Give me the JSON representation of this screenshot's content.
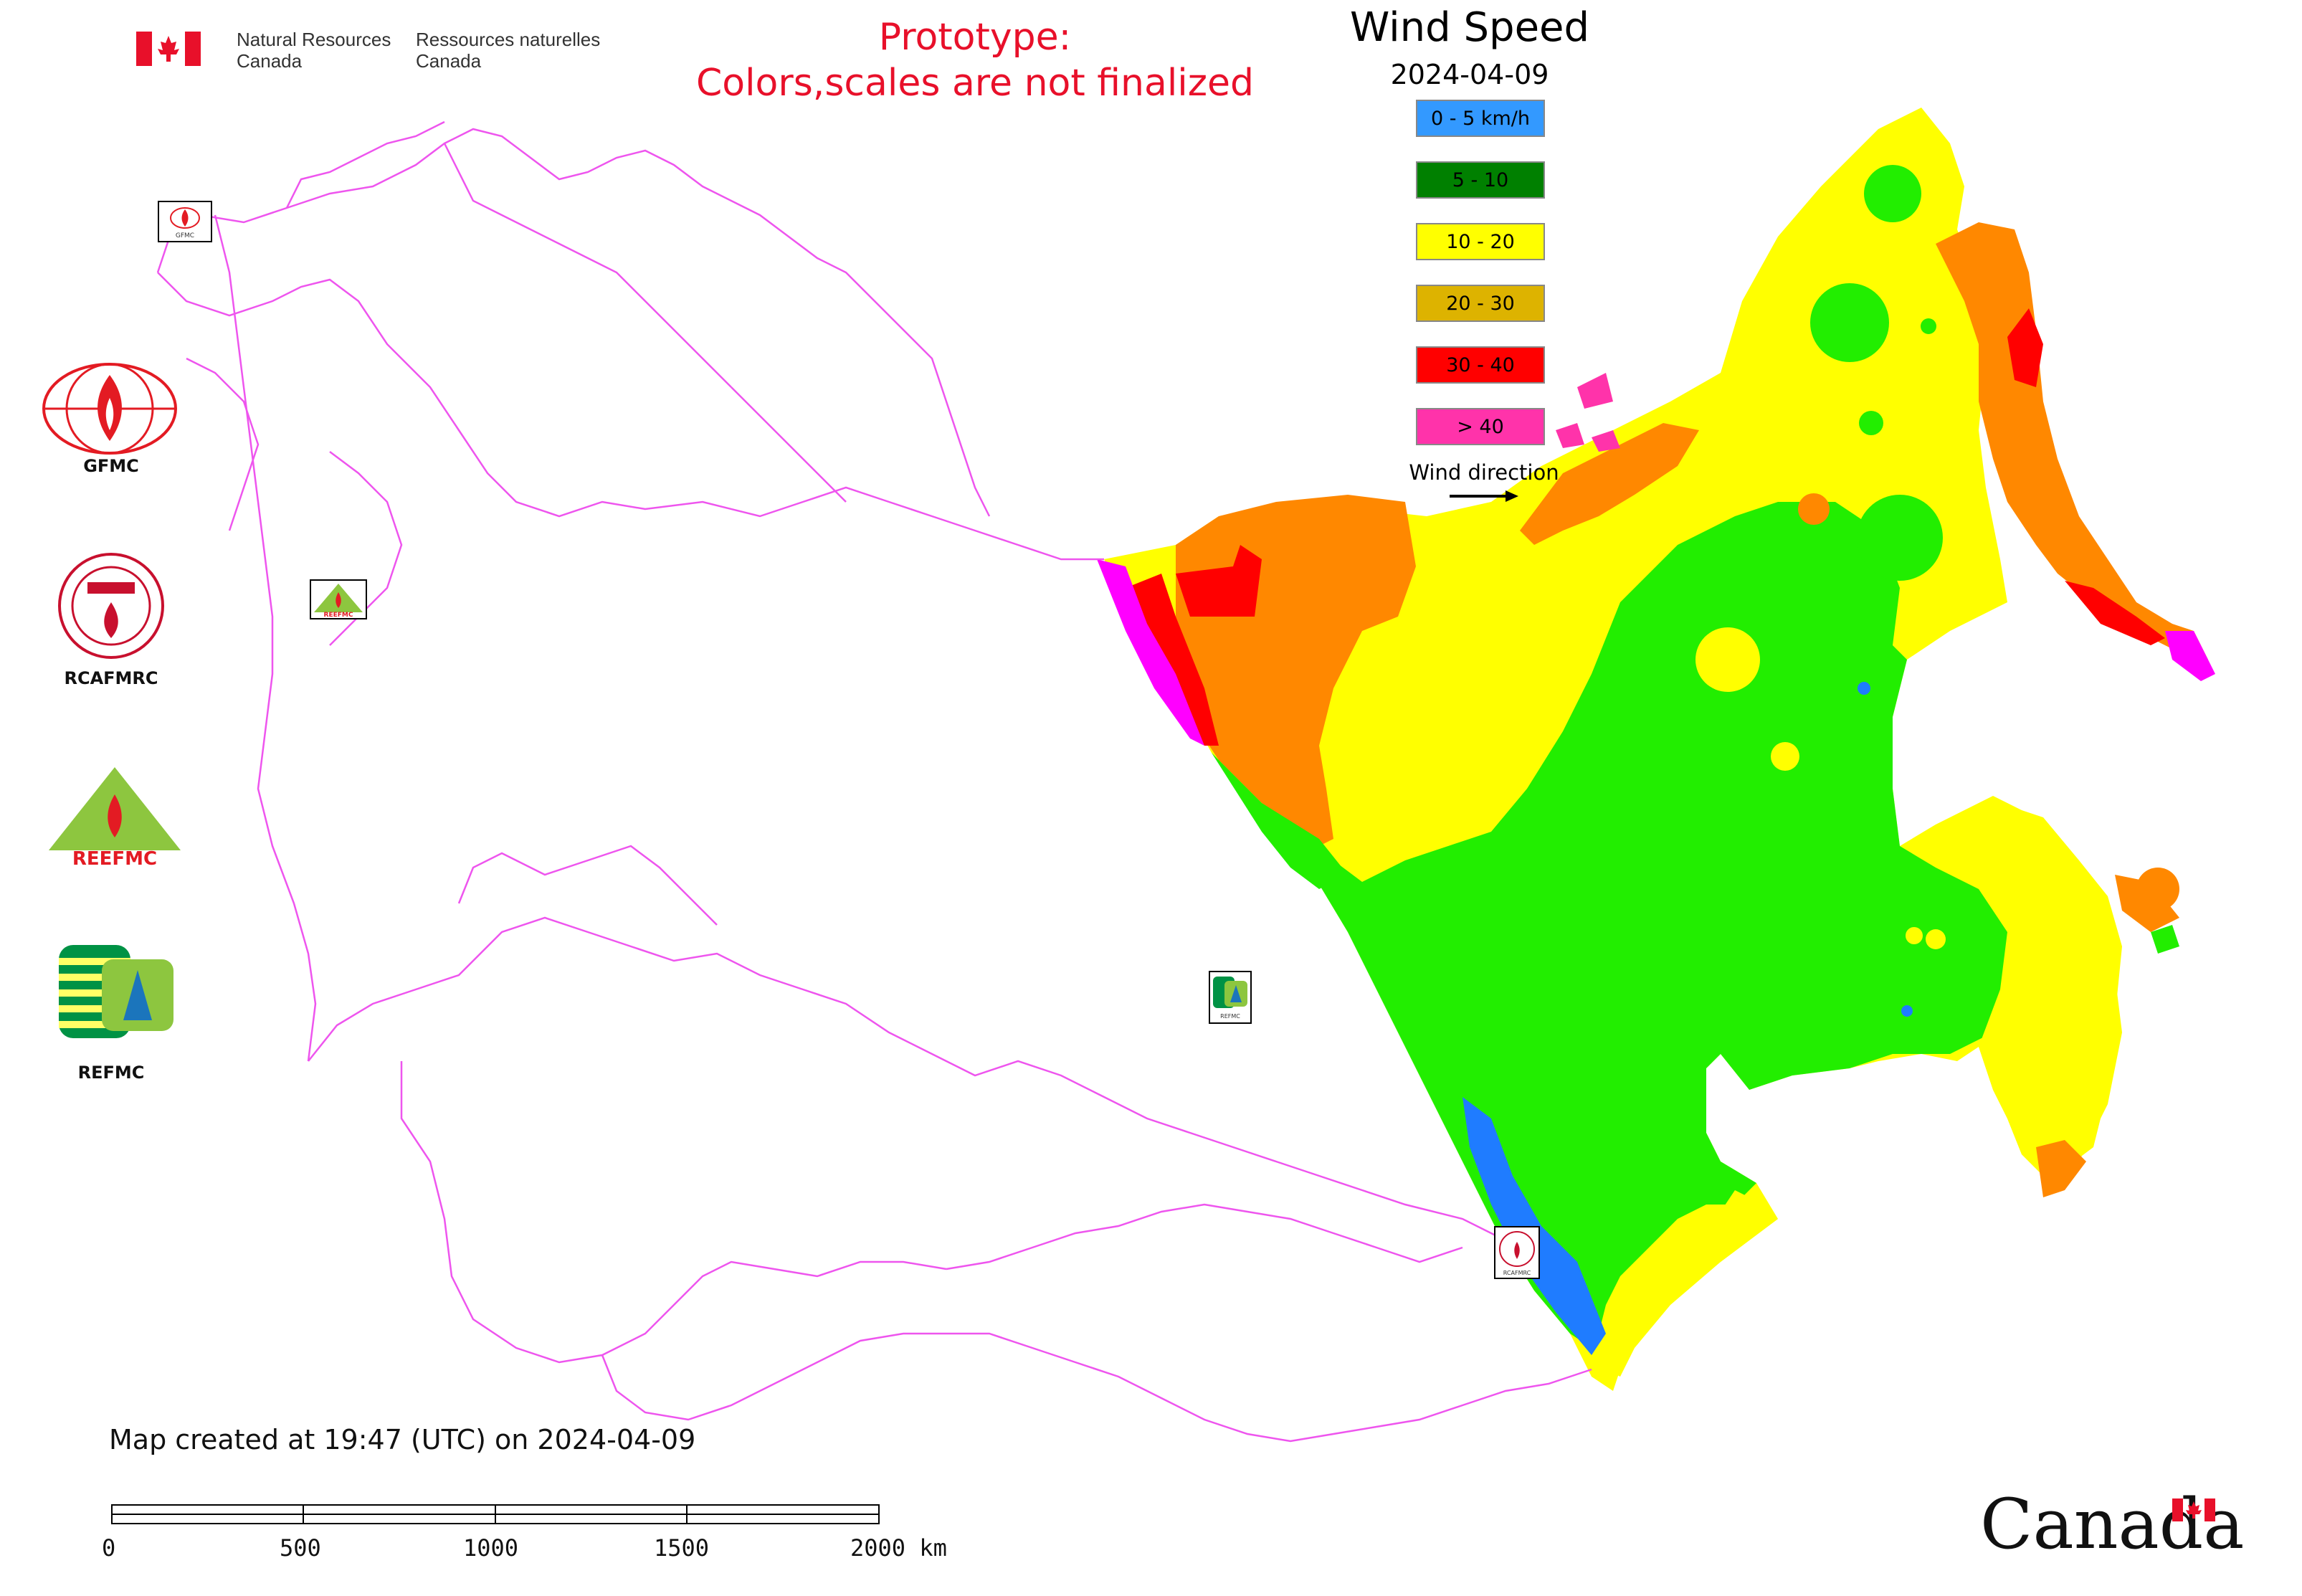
{
  "header": {
    "department_en_line1": "Natural Resources",
    "department_en_line2": "Canada",
    "department_fr_line1": "Ressources naturelles",
    "department_fr_line2": "Canada",
    "prototype_line1": "Prototype:",
    "prototype_line2": "Colors,scales are not finalized",
    "title": "Wind Speed",
    "date": "2024-04-09"
  },
  "legend": {
    "items": [
      {
        "label": "0 - 5 km/h",
        "color": "#3399ff"
      },
      {
        "label": "5 - 10",
        "color": "#008000"
      },
      {
        "label": "10 - 20",
        "color": "#ffff00"
      },
      {
        "label": "20 - 30",
        "color": "#ddb300"
      },
      {
        "label": "30 - 40",
        "color": "#ff0000"
      },
      {
        "label": "> 40",
        "color": "#ff33aa"
      }
    ],
    "wind_direction_label": "Wind direction"
  },
  "colors": {
    "green": "#22ee00",
    "yellow": "#ffff00",
    "orange": "#ff8800",
    "red": "#ff0000",
    "magenta": "#ff00ff",
    "blue": "#1f7cff",
    "borders": "#ee55ee"
  },
  "organizations": [
    {
      "label": "GFMC"
    },
    {
      "label": "RCAFMRC"
    },
    {
      "label": "REEFMC"
    },
    {
      "label": "REFMC"
    }
  ],
  "logo_text": {
    "gfmc_small": "GFMC",
    "reefmc_small": "REEFMC",
    "refmc_small": "REFMC",
    "rcafmrc_small": "RCAFMRC"
  },
  "footer": {
    "created": "Map created at 19:47 (UTC) on 2024-04-09",
    "scale_ticks": [
      "0",
      "500",
      "1000",
      "1500",
      "2000 km"
    ],
    "wordmark": "Canada"
  }
}
